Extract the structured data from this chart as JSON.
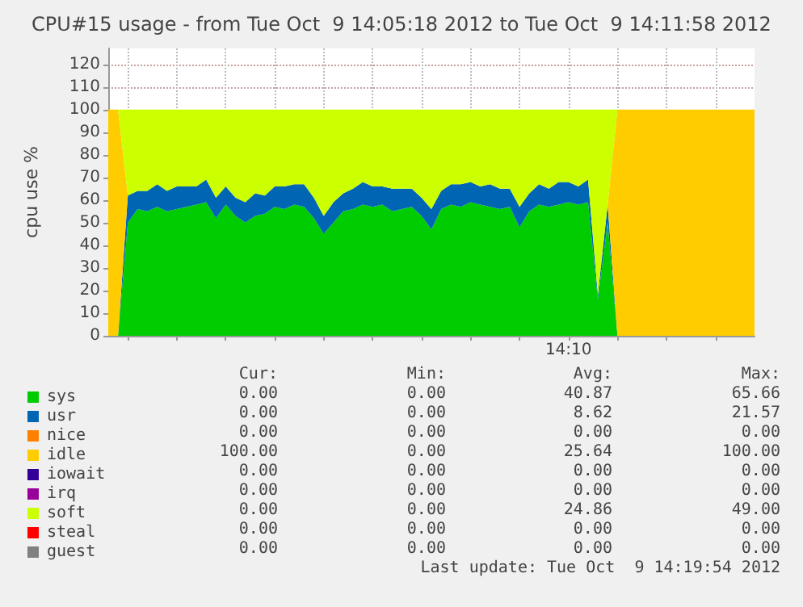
{
  "chart_data": {
    "type": "area",
    "stacked": true,
    "title": "CPU#15 usage - from Tue Oct  9 14:05:18 2012 to Tue Oct  9 14:11:58 2012",
    "ylabel": "cpu use %",
    "categories": [
      null,
      null,
      null,
      null,
      null,
      null,
      null,
      null,
      null,
      null,
      null,
      null,
      null,
      null,
      null,
      null,
      null,
      null,
      null,
      null,
      null,
      null,
      null,
      null,
      null,
      null,
      null,
      null,
      null,
      null,
      null,
      null,
      null,
      null,
      null,
      null,
      null,
      null,
      null,
      null,
      null,
      null,
      null,
      null,
      null,
      null,
      null,
      "14:10",
      null,
      null,
      null,
      null,
      null,
      null,
      null,
      null,
      null,
      null,
      null,
      null,
      null,
      null,
      null,
      null,
      null,
      null,
      null
    ],
    "series": [
      {
        "name": "sys",
        "color": "#00cc00",
        "values": [
          0,
          0,
          50,
          56,
          55,
          57,
          55,
          56,
          57,
          58,
          59,
          52,
          58,
          53,
          50,
          53,
          54,
          57,
          56,
          58,
          57,
          52,
          45,
          50,
          55,
          56,
          58,
          57,
          58,
          55,
          56,
          57,
          53,
          47,
          56,
          58,
          57,
          59,
          58,
          57,
          56,
          57,
          48,
          55,
          58,
          57,
          58,
          59,
          58,
          59,
          16,
          50,
          0,
          0,
          0,
          0,
          0,
          0,
          0,
          0,
          0,
          0,
          0,
          0,
          0,
          0,
          0
        ]
      },
      {
        "name": "usr",
        "color": "#0066b3",
        "values": [
          0,
          0,
          12,
          8,
          9,
          10,
          9,
          10,
          9,
          8,
          10,
          9,
          8,
          8,
          9,
          10,
          8,
          9,
          10,
          9,
          10,
          9,
          8,
          9,
          8,
          9,
          10,
          9,
          8,
          10,
          9,
          8,
          8,
          9,
          8,
          9,
          10,
          9,
          8,
          10,
          9,
          8,
          9,
          8,
          9,
          8,
          10,
          9,
          8,
          10,
          2,
          8,
          0,
          0,
          0,
          0,
          0,
          0,
          0,
          0,
          0,
          0,
          0,
          0,
          0,
          0,
          0
        ]
      },
      {
        "name": "nice",
        "color": "#ff8000",
        "values": [
          null,
          null,
          null,
          null,
          null,
          null,
          null,
          null,
          null,
          null,
          null,
          null,
          null,
          null,
          null,
          null,
          null,
          null,
          null,
          null,
          null,
          null,
          null,
          null,
          null,
          null,
          null,
          null,
          null,
          null,
          null,
          null,
          null,
          null,
          null,
          null,
          null,
          null,
          null,
          null,
          null,
          null,
          null,
          null,
          null,
          null,
          null,
          null,
          null,
          null,
          null,
          null,
          null,
          null,
          null,
          null,
          null,
          null,
          null,
          null,
          null,
          null,
          null,
          null,
          null,
          null,
          null
        ]
      },
      {
        "name": "idle",
        "color": "#ffcc00",
        "values": [
          100,
          100,
          0,
          0,
          0,
          0,
          0,
          0,
          0,
          0,
          0,
          0,
          0,
          0,
          0,
          0,
          0,
          0,
          0,
          0,
          0,
          0,
          0,
          0,
          0,
          0,
          0,
          0,
          0,
          0,
          0,
          0,
          0,
          0,
          0,
          0,
          0,
          0,
          0,
          0,
          0,
          0,
          0,
          0,
          0,
          0,
          0,
          0,
          0,
          0,
          0,
          0,
          100,
          100,
          100,
          100,
          100,
          100,
          100,
          100,
          100,
          100,
          100,
          100,
          100,
          100,
          100
        ]
      },
      {
        "name": "iowait",
        "color": "#330099",
        "values": [
          null,
          null,
          null,
          null,
          null,
          null,
          null,
          null,
          null,
          null,
          null,
          null,
          null,
          null,
          null,
          null,
          null,
          null,
          null,
          null,
          null,
          null,
          null,
          null,
          null,
          null,
          null,
          null,
          null,
          null,
          null,
          null,
          null,
          null,
          null,
          null,
          null,
          null,
          null,
          null,
          null,
          null,
          null,
          null,
          null,
          null,
          null,
          null,
          null,
          null,
          null,
          null,
          null,
          null,
          null,
          null,
          null,
          null,
          null,
          null,
          null,
          null,
          null,
          null,
          null,
          null,
          null
        ]
      },
      {
        "name": "irq",
        "color": "#990099",
        "values": [
          null,
          null,
          null,
          null,
          null,
          null,
          null,
          null,
          null,
          null,
          null,
          null,
          null,
          null,
          null,
          null,
          null,
          null,
          null,
          null,
          null,
          null,
          null,
          null,
          null,
          null,
          null,
          null,
          null,
          null,
          null,
          null,
          null,
          null,
          null,
          null,
          null,
          null,
          null,
          null,
          null,
          null,
          null,
          null,
          null,
          null,
          null,
          null,
          null,
          null,
          null,
          null,
          null,
          null,
          null,
          null,
          null,
          null,
          null,
          null,
          null,
          null,
          null,
          null,
          null,
          null,
          null
        ]
      },
      {
        "name": "soft",
        "color": "#ccff00",
        "values": [
          0,
          0,
          38,
          36,
          36,
          33,
          36,
          34,
          34,
          34,
          31,
          39,
          34,
          39,
          41,
          37,
          38,
          34,
          34,
          33,
          33,
          39,
          47,
          41,
          37,
          35,
          32,
          34,
          34,
          35,
          35,
          35,
          39,
          44,
          36,
          33,
          33,
          32,
          34,
          33,
          35,
          35,
          43,
          37,
          33,
          35,
          32,
          32,
          34,
          31,
          82,
          42,
          0,
          0,
          0,
          0,
          0,
          0,
          0,
          0,
          0,
          0,
          0,
          0,
          0,
          0,
          0
        ]
      },
      {
        "name": "steal",
        "color": "#ff0000",
        "values": [
          null,
          null,
          null,
          null,
          null,
          null,
          null,
          null,
          null,
          null,
          null,
          null,
          null,
          null,
          null,
          null,
          null,
          null,
          null,
          null,
          null,
          null,
          null,
          null,
          null,
          null,
          null,
          null,
          null,
          null,
          null,
          null,
          null,
          null,
          null,
          null,
          null,
          null,
          null,
          null,
          null,
          null,
          null,
          null,
          null,
          null,
          null,
          null,
          null,
          null,
          null,
          null,
          null,
          null,
          null,
          null,
          null,
          null,
          null,
          null,
          null,
          null,
          null,
          null,
          null,
          null,
          null
        ]
      },
      {
        "name": "guest",
        "color": "#808080",
        "values": [
          null,
          null,
          null,
          null,
          null,
          null,
          null,
          null,
          null,
          null,
          null,
          null,
          null,
          null,
          null,
          null,
          null,
          null,
          null,
          null,
          null,
          null,
          null,
          null,
          null,
          null,
          null,
          null,
          null,
          null,
          null,
          null,
          null,
          null,
          null,
          null,
          null,
          null,
          null,
          null,
          null,
          null,
          null,
          null,
          null,
          null,
          null,
          null,
          null,
          null,
          null,
          null,
          null,
          null,
          null,
          null,
          null,
          null,
          null,
          null,
          null,
          null,
          null,
          null,
          null,
          null,
          null
        ]
      }
    ],
    "ylim": [
      0,
      127
    ],
    "yticks": [
      0,
      10,
      20,
      30,
      40,
      50,
      60,
      70,
      80,
      90,
      100,
      110,
      120
    ],
    "grid": true,
    "legend": "bottom left",
    "annotations": [
      "Cur: Min: Avg: Max:",
      "0.00 0.00 40.87 65.66",
      "0.00 0.00 8.62 21.57",
      "0.00 0.00 0.00 0.00",
      "100.00 0.00 25.64 100.00",
      "0.00 0.00 0.00 0.00",
      "0.00 0.00 0.00 0.00",
      "0.00 0.00 24.86 49.00",
      "0.00 0.00 0.00 0.00",
      "0.00 0.00 0.00 0.00",
      "Last update: Tue Oct  9 14:19:54 2012"
    ]
  }
}
